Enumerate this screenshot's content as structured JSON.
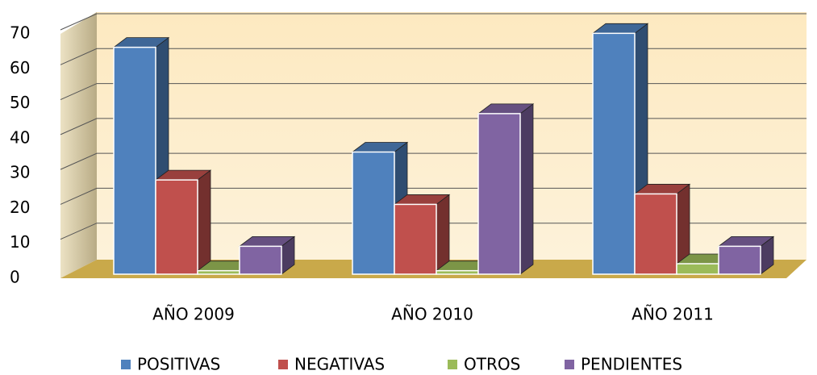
{
  "chart_data": {
    "type": "bar3d",
    "categories": [
      "AÑO 2009",
      "AÑO 2010",
      "AÑO 2011"
    ],
    "series": [
      {
        "name": "POSITIVAS",
        "color": "#4f81bd",
        "values": [
          65,
          35,
          69
        ]
      },
      {
        "name": "NEGATIVAS",
        "color": "#c0504d",
        "values": [
          27,
          20,
          23
        ]
      },
      {
        "name": "OTROS",
        "color": "#9bbb59",
        "values": [
          1,
          1,
          3
        ]
      },
      {
        "name": "PENDIENTES",
        "color": "#8064a2",
        "values": [
          8,
          46,
          8
        ]
      }
    ],
    "ylim": [
      0,
      70
    ],
    "yticks": [
      0,
      10,
      20,
      30,
      40,
      50,
      60,
      70
    ],
    "grid": true,
    "legend": "bottom"
  }
}
